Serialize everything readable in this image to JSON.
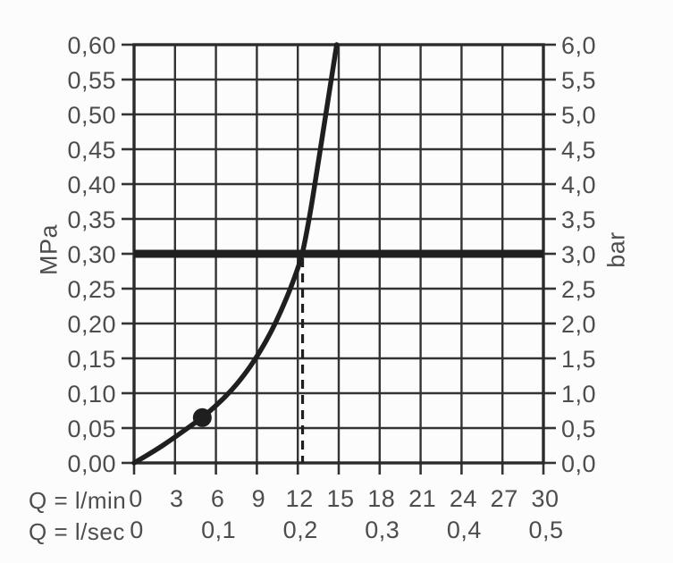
{
  "chart_data": {
    "type": "line",
    "title": "",
    "description": "Flow rate versus pressure characteristic curve",
    "grid": true,
    "legend": "none",
    "y_axis_left": {
      "label": "MPa",
      "min": 0,
      "max": 0.6,
      "step": 0.05,
      "tick_labels_bottom_to_top": [
        "0,00",
        "0,05",
        "0,10",
        "0,15",
        "0,20",
        "0,25",
        "0,30",
        "0,35",
        "0,40",
        "0,45",
        "0,50",
        "0,55",
        "0,60"
      ]
    },
    "y_axis_right": {
      "label": "bar",
      "min": 0,
      "max": 6,
      "step": 0.5,
      "tick_labels_bottom_to_top": [
        "0,0",
        "0,5",
        "1,0",
        "1,5",
        "2,0",
        "2,5",
        "3,0",
        "3,5",
        "4,0",
        "4,5",
        "5,0",
        "5,5",
        "6,0"
      ]
    },
    "x_axis_primary": {
      "label": "Q = l/min",
      "min": 0,
      "max": 30,
      "step": 3,
      "tick_labels": [
        "0",
        "3",
        "6",
        "9",
        "12",
        "15",
        "18",
        "21",
        "24",
        "27",
        "30"
      ]
    },
    "x_axis_secondary": {
      "label": "Q = l/sec",
      "ticks": [
        {
          "q_lmin": 0,
          "text": "0"
        },
        {
          "q_lmin": 6,
          "text": "0,1"
        },
        {
          "q_lmin": 12,
          "text": "0,2"
        },
        {
          "q_lmin": 18,
          "text": "0,3"
        },
        {
          "q_lmin": 24,
          "text": "0,4"
        },
        {
          "q_lmin": 30,
          "text": "0,5"
        }
      ]
    },
    "series": [
      {
        "name": "flow-pressure-curve",
        "points_q_lmin_p_mpa": [
          [
            0,
            0
          ],
          [
            1.5,
            0.017
          ],
          [
            3,
            0.037
          ],
          [
            4,
            0.051
          ],
          [
            5,
            0.065
          ],
          [
            6,
            0.082
          ],
          [
            7,
            0.101
          ],
          [
            8,
            0.124
          ],
          [
            9,
            0.152
          ],
          [
            10,
            0.186
          ],
          [
            10.8,
            0.219
          ],
          [
            11.5,
            0.252
          ],
          [
            12.0,
            0.279
          ],
          [
            12.35,
            0.3
          ],
          [
            12.9,
            0.357
          ],
          [
            13.3,
            0.406
          ],
          [
            13.7,
            0.456
          ],
          [
            14.1,
            0.506
          ],
          [
            14.5,
            0.556
          ],
          [
            14.85,
            0.6
          ]
        ]
      }
    ],
    "marker_point": {
      "q_lmin": 5,
      "p_mpa": 0.065
    },
    "reference_line": {
      "p_mpa": 0.3,
      "bar": 3.0,
      "style": "thick-horizontal"
    },
    "dashed_guide": {
      "q_lmin": 12.35,
      "from_p_mpa": 0.3,
      "to_p_mpa": 0.0
    },
    "colors": {
      "curve": "#1f1f1f",
      "reference_line": "#1f1f1f",
      "grid": "#333333",
      "frame": "#2b2b2b",
      "text": "#4d4d4d",
      "background": "#fcfcfc"
    }
  }
}
